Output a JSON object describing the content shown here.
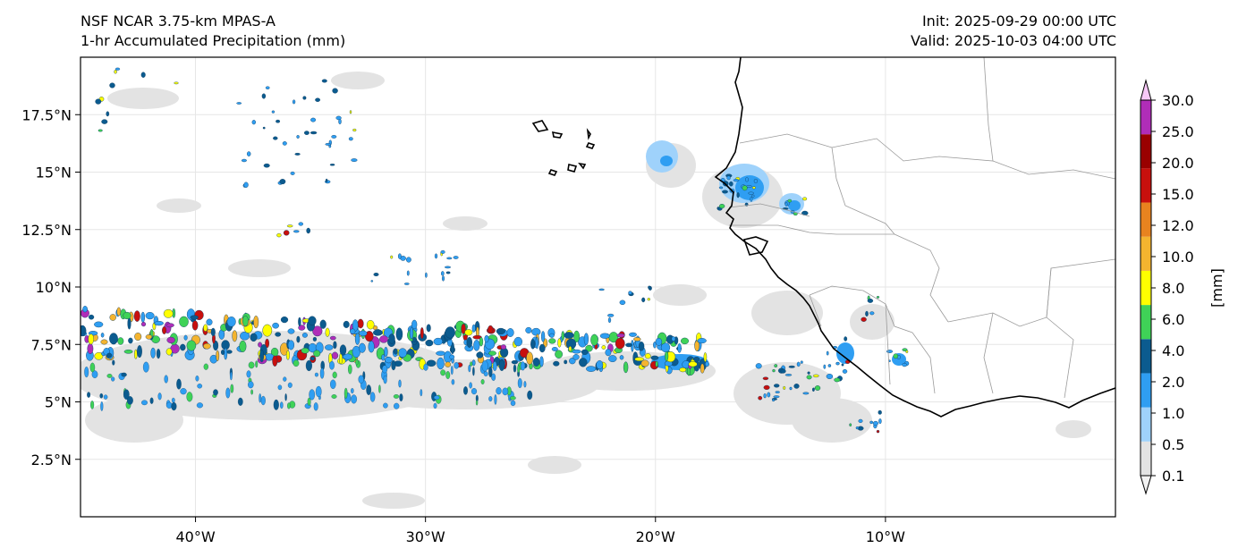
{
  "header": {
    "model": "NSF NCAR 3.75-km MPAS-A",
    "field": "1-hr Accumulated Precipitation (mm)",
    "init": "Init: 2025-09-29 00:00 UTC",
    "valid": "Valid: 2025-10-03 04:00 UTC"
  },
  "axes": {
    "lon_ticks": [
      "40°W",
      "30°W",
      "20°W",
      "10°W"
    ],
    "lat_ticks": [
      "17.5°N",
      "15°N",
      "12.5°N",
      "10°N",
      "7.5°N",
      "5°N",
      "2.5°N"
    ]
  },
  "colorbar": {
    "label": "[mm]",
    "levels": [
      "0.1",
      "0.5",
      "1.0",
      "2.0",
      "4.0",
      "6.0",
      "8.0",
      "10.0",
      "12.0",
      "15.0",
      "20.0",
      "25.0",
      "30.0"
    ],
    "colors": [
      "#e3e3e3",
      "#9fd2fb",
      "#2f9ef2",
      "#0b5b8f",
      "#3fd257",
      "#ffff00",
      "#f4b42f",
      "#e8831f",
      "#c8100d",
      "#990000",
      "#b02db8"
    ],
    "over_color": "#f7c8f7"
  },
  "map": {
    "region": "Eastern tropical Atlantic and West Africa",
    "extent": {
      "lon": [
        -45,
        0
      ],
      "lat": [
        0,
        20
      ]
    },
    "coastline_color": "#000000",
    "border_color": "#9a9a9a"
  }
}
